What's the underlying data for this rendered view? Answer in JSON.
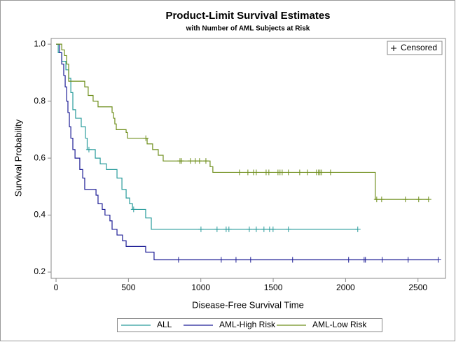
{
  "chart_data": {
    "type": "step",
    "title": "Product-Limit Survival Estimates",
    "subtitle": "with Number of AML Subjects at Risk",
    "x_label": "Disease-Free Survival Time",
    "y_label": "Survival Probability",
    "xlim": [
      -34,
      2690
    ],
    "ylim": [
      0.178,
      1.02
    ],
    "xticks": [
      0,
      500,
      1000,
      1500,
      2000,
      2500
    ],
    "yticks": [
      0.2,
      0.4,
      0.6,
      0.8,
      {
        "value": 1,
        "label": "1.0"
      }
    ],
    "censored_label": "Censored",
    "legend": "bottom",
    "series": [
      {
        "name": "ALL",
        "color": "#2a9c9c",
        "x": [
          0,
          15,
          39,
          68,
          87,
          102,
          116,
          135,
          174,
          203,
          215,
          271,
          305,
          348,
          421,
          455,
          484,
          508,
          528,
          619,
          658,
          2084
        ],
        "values": [
          1,
          0.97,
          0.94,
          0.91,
          0.88,
          0.83,
          0.77,
          0.74,
          0.71,
          0.67,
          0.63,
          0.6,
          0.58,
          0.56,
          0.53,
          0.49,
          0.46,
          0.44,
          0.42,
          0.39,
          0.35,
          0.35
        ],
        "censored": {
          "x": [
            227,
            536,
            1001,
            1112,
            1175,
            1194,
            1335,
            1383,
            1436,
            1475,
            1499,
            1605,
            2084
          ],
          "values": [
            0.63,
            0.42,
            0.35,
            0.35,
            0.35,
            0.35,
            0.35,
            0.35,
            0.35,
            0.35,
            0.35,
            0.35,
            0.35
          ]
        }
      },
      {
        "name": "AML-High Risk",
        "color": "#1f1f96",
        "x": [
          0,
          24,
          39,
          53,
          63,
          73,
          82,
          92,
          102,
          116,
          131,
          164,
          184,
          198,
          276,
          290,
          319,
          338,
          372,
          387,
          421,
          459,
          484,
          619,
          677,
          2640
        ],
        "values": [
          1,
          0.97,
          0.93,
          0.89,
          0.85,
          0.8,
          0.76,
          0.71,
          0.67,
          0.63,
          0.6,
          0.56,
          0.53,
          0.49,
          0.47,
          0.44,
          0.42,
          0.4,
          0.38,
          0.35,
          0.33,
          0.31,
          0.29,
          0.27,
          0.243,
          0.243
        ],
        "censored": {
          "x": [
            846,
            1141,
            1243,
            1344,
            1634,
            2021,
            2128,
            2137,
            2253,
            2432,
            2640
          ],
          "values": [
            0.243,
            0.243,
            0.243,
            0.243,
            0.243,
            0.243,
            0.243,
            0.243,
            0.243,
            0.243,
            0.243
          ]
        }
      },
      {
        "name": "AML-Low Risk",
        "color": "#6f8f1c",
        "x": [
          0,
          39,
          58,
          73,
          87,
          198,
          222,
          256,
          290,
          387,
          397,
          406,
          416,
          484,
          493,
          629,
          667,
          706,
          740,
          1064,
          1083,
          2205,
          2573
        ],
        "values": [
          1,
          0.98,
          0.96,
          0.93,
          0.87,
          0.85,
          0.82,
          0.8,
          0.78,
          0.76,
          0.74,
          0.72,
          0.7,
          0.69,
          0.67,
          0.65,
          0.63,
          0.61,
          0.59,
          0.57,
          0.55,
          0.455,
          0.455
        ],
        "censored": {
          "x": [
            620,
            856,
            866,
            928,
            962,
            991,
            1035,
            1267,
            1325,
            1364,
            1383,
            1451,
            1470,
            1533,
            1547,
            1562,
            1605,
            1683,
            1736,
            1799,
            1813,
            1823,
            1833,
            1896,
            2215,
            2249,
            2413,
            2505,
            2573
          ],
          "values": [
            0.67,
            0.59,
            0.59,
            0.59,
            0.59,
            0.59,
            0.59,
            0.55,
            0.55,
            0.55,
            0.55,
            0.55,
            0.55,
            0.55,
            0.55,
            0.55,
            0.55,
            0.55,
            0.55,
            0.55,
            0.55,
            0.55,
            0.55,
            0.55,
            0.455,
            0.455,
            0.455,
            0.455,
            0.455
          ]
        }
      }
    ]
  }
}
